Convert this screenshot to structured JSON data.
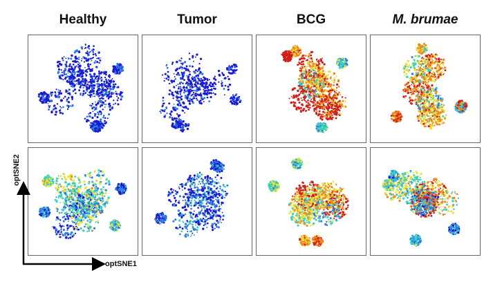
{
  "columns": [
    {
      "title": "Healthy",
      "italic": false
    },
    {
      "title": "Tumor",
      "italic": false
    },
    {
      "title": "BCG",
      "italic": false
    },
    {
      "title": "M. brumae",
      "italic": true
    }
  ],
  "axes": {
    "x_label": "optSNE1",
    "y_label": "optSNE2"
  },
  "panels": [
    {
      "row": 0,
      "col": 0,
      "condition": "Healthy",
      "intensity": 0.08,
      "density": 0.75
    },
    {
      "row": 0,
      "col": 1,
      "condition": "Tumor",
      "intensity": 0.06,
      "density": 0.45
    },
    {
      "row": 0,
      "col": 2,
      "condition": "BCG",
      "intensity": 0.65,
      "density": 0.95
    },
    {
      "row": 0,
      "col": 3,
      "condition": "M. brumae",
      "intensity": 0.6,
      "density": 0.95
    },
    {
      "row": 1,
      "col": 0,
      "condition": "Healthy",
      "intensity": 0.35,
      "density": 0.9
    },
    {
      "row": 1,
      "col": 1,
      "condition": "Tumor",
      "intensity": 0.2,
      "density": 0.6
    },
    {
      "row": 1,
      "col": 2,
      "condition": "BCG",
      "intensity": 0.6,
      "density": 0.95
    },
    {
      "row": 1,
      "col": 3,
      "condition": "M. brumae",
      "intensity": 0.6,
      "density": 0.95
    }
  ],
  "colors": {
    "low": "#1a1ad6",
    "mid_low": "#2f7fe0",
    "mid": "#37d0c8",
    "mid_high": "#e8e23a",
    "high": "#f08a1c",
    "max": "#d0201a",
    "frame": "#666666",
    "axis": "#000000"
  }
}
